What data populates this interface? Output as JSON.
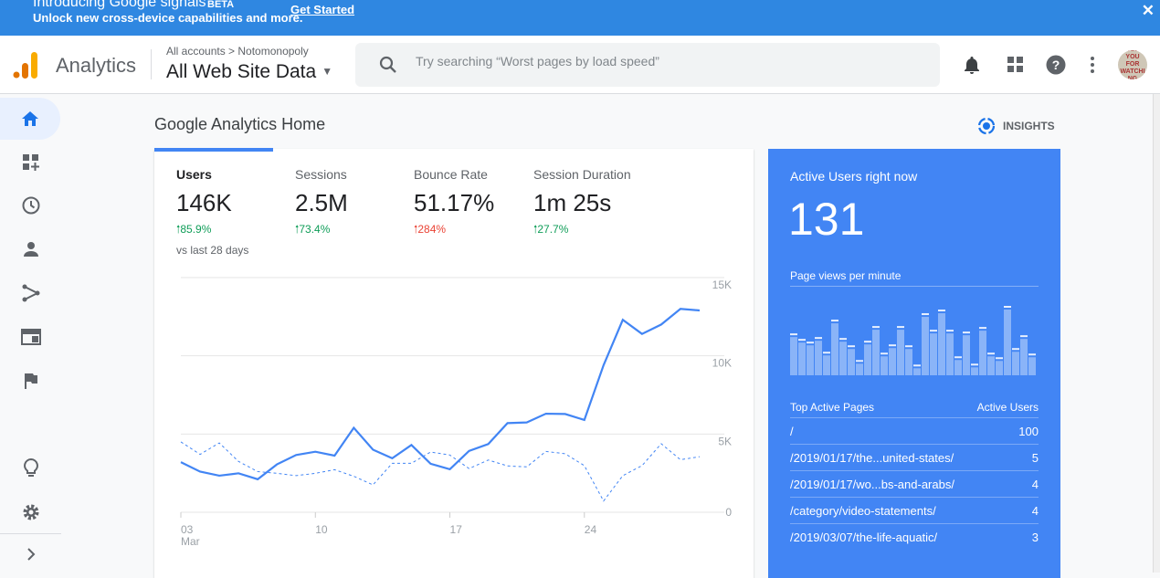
{
  "banner": {
    "title": "Introducing Google signals",
    "badge": "BETA",
    "subtitle": "Unlock new cross-device capabilities and more.",
    "cta": "Get Started",
    "close": "✕"
  },
  "header": {
    "app_name": "Analytics",
    "breadcrumb": "All accounts > Notomonopoly",
    "property": "All Web Site Data",
    "search_placeholder": "Try searching “Worst pages by load speed”",
    "avatar_text": "HANK YOU FOR WATCHING"
  },
  "sidebar": {
    "items": [
      "home",
      "customization",
      "realtime",
      "audience",
      "acquisition",
      "behavior",
      "conversions",
      "discover",
      "admin",
      "expand"
    ]
  },
  "page": {
    "title": "Google Analytics Home",
    "insights": "INSIGHTS"
  },
  "metrics": [
    {
      "label": "Users",
      "value": "146K",
      "change": "85.9%",
      "trend": "up-good",
      "note": "vs last 28 days"
    },
    {
      "label": "Sessions",
      "value": "2.5M",
      "change": "73.4%",
      "trend": "up-good"
    },
    {
      "label": "Bounce Rate",
      "value": "51.17%",
      "change": "284%",
      "trend": "up-bad"
    },
    {
      "label": "Session Duration",
      "value": "1m 25s",
      "change": "27.7%",
      "trend": "up-good"
    }
  ],
  "colors": {
    "accent": "#4285f4",
    "positive": "#0f9d58",
    "negative": "#ea4335",
    "banner": "#2f87e1"
  },
  "chart_data": {
    "type": "line",
    "x_ticks": [
      "03\nMar",
      "10",
      "17",
      "24"
    ],
    "x_tick_labels": [
      {
        "day": "03",
        "month": "Mar"
      },
      {
        "day": "10"
      },
      {
        "day": "17"
      },
      {
        "day": "24"
      }
    ],
    "x": [
      "Mar 03",
      "Mar 04",
      "Mar 05",
      "Mar 06",
      "Mar 07",
      "Mar 08",
      "Mar 09",
      "Mar 10",
      "Mar 11",
      "Mar 12",
      "Mar 13",
      "Mar 14",
      "Mar 15",
      "Mar 16",
      "Mar 17",
      "Mar 18",
      "Mar 19",
      "Mar 20",
      "Mar 21",
      "Mar 22",
      "Mar 23",
      "Mar 24",
      "Mar 25",
      "Mar 26",
      "Mar 27",
      "Mar 28",
      "Mar 29",
      "Mar 30"
    ],
    "y_ticks": [
      "15K",
      "10K",
      "5K",
      "0"
    ],
    "ylim": [
      0,
      15000
    ],
    "grid": true,
    "series": [
      {
        "style": "solid",
        "values": [
          3200,
          2600,
          2340,
          2490,
          2110,
          3060,
          3660,
          3870,
          3620,
          5400,
          4000,
          3450,
          4300,
          3100,
          2750,
          3920,
          4360,
          5700,
          5740,
          6300,
          6280,
          5900,
          9400,
          12300,
          11400,
          12000,
          13000,
          12900
        ]
      },
      {
        "style": "dashed",
        "values": [
          4500,
          3700,
          4430,
          3250,
          2600,
          2490,
          2340,
          2490,
          2720,
          2300,
          1750,
          3130,
          3130,
          3850,
          3660,
          2790,
          3340,
          2960,
          2900,
          3890,
          3740,
          2980,
          720,
          2340,
          2980,
          4380,
          3360,
          3550
        ]
      }
    ]
  },
  "realtime": {
    "title": "Active Users right now",
    "count": "131",
    "pageviews_label": "Page views per minute",
    "pageviews_per_minute": [
      125,
      107,
      98,
      113,
      65,
      170,
      110,
      86,
      38,
      101,
      149,
      62,
      89,
      149,
      86,
      23,
      191,
      137,
      203,
      137,
      50,
      131,
      26,
      146,
      62,
      47,
      215,
      77,
      119,
      59
    ],
    "table_header": {
      "page": "Top Active Pages",
      "users": "Active Users"
    },
    "rows": [
      {
        "page": "/",
        "users": "100"
      },
      {
        "page": "/2019/01/17/the...united-states/",
        "users": "5"
      },
      {
        "page": "/2019/01/17/wo...bs-and-arabs/",
        "users": "4"
      },
      {
        "page": "/category/video-statements/",
        "users": "4"
      },
      {
        "page": "/2019/03/07/the-life-aquatic/",
        "users": "3"
      }
    ]
  }
}
